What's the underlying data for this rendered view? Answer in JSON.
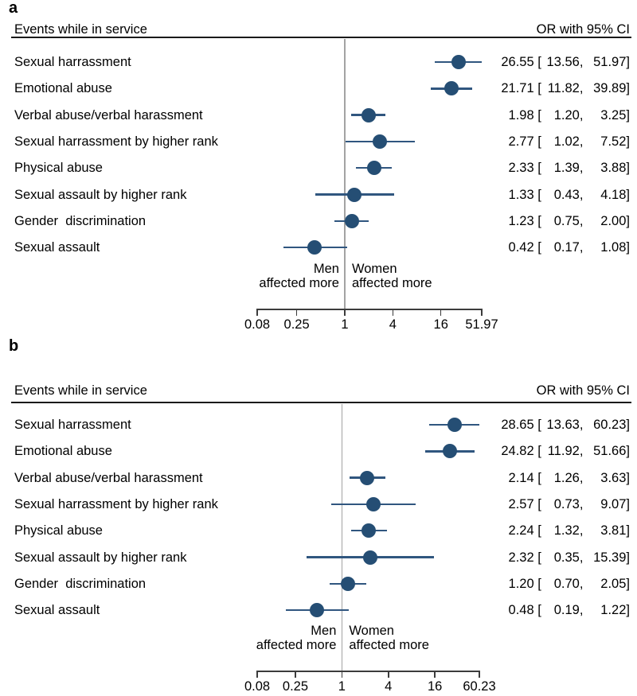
{
  "colors": {
    "marker": "#254e74",
    "ci_line": "#30567f",
    "ref_line": "#a3a3a3",
    "rule": "#1a1a1a",
    "axis": "#3c3c3c"
  },
  "chart_data": [
    {
      "type": "scatter",
      "variant": "forest-plot",
      "panel_label": "a",
      "title": "Events while in service",
      "value_header": "OR with 95% CI",
      "xscale": "log",
      "xlim": [
        0.08,
        51.97
      ],
      "xticks": [
        0.08,
        0.25,
        1,
        4,
        16,
        51.97
      ],
      "xtick_labels": [
        "0.08",
        "0.25",
        "1",
        "4",
        "16",
        "51.97"
      ],
      "ref_line": 1,
      "left_label_line1": "Men",
      "left_label_line2": "affected more",
      "right_label_line1": "Women",
      "right_label_line2": "affected more",
      "categories": [
        "Sexual harrassment",
        "Emotional abuse",
        "Verbal abuse/verbal harassment",
        "Sexual harrassment by higher rank",
        "Physical abuse",
        "Sexual assault by higher rank",
        "Gender  discrimination",
        "Sexual assault"
      ],
      "series": [
        {
          "name": "OR",
          "values": [
            26.55,
            21.71,
            1.98,
            2.77,
            2.33,
            1.33,
            1.23,
            0.42
          ]
        },
        {
          "name": "95% CI lower",
          "values": [
            13.56,
            11.82,
            1.2,
            1.02,
            1.39,
            0.43,
            0.75,
            0.17
          ]
        },
        {
          "name": "95% CI upper",
          "values": [
            51.97,
            39.89,
            3.25,
            7.52,
            3.88,
            4.18,
            2.0,
            1.08
          ]
        }
      ],
      "display": {
        "or": [
          "26.55",
          "21.71",
          "1.98",
          "2.77",
          "2.33",
          "1.33",
          "1.23",
          "0.42"
        ],
        "lo": [
          "13.56",
          "11.82",
          "1.20",
          "1.02",
          "1.39",
          "0.43",
          "0.75",
          "0.17"
        ],
        "hi": [
          "51.97",
          "39.89",
          "3.25",
          "7.52",
          "3.88",
          "4.18",
          "2.00",
          "1.08"
        ]
      }
    },
    {
      "type": "scatter",
      "variant": "forest-plot",
      "panel_label": "b",
      "title": "Events while in service",
      "value_header": "OR with 95% CI",
      "xscale": "log",
      "xlim": [
        0.08,
        60.23
      ],
      "xticks": [
        0.08,
        0.25,
        1,
        4,
        16,
        60.23
      ],
      "xtick_labels": [
        "0.08",
        "0.25",
        "1",
        "4",
        "16",
        "60.23"
      ],
      "ref_line": 1,
      "left_label_line1": "Men",
      "left_label_line2": "affected more",
      "right_label_line1": "Women",
      "right_label_line2": "affected more",
      "categories": [
        "Sexual harrassment",
        "Emotional abuse",
        "Verbal abuse/verbal harassment",
        "Sexual harrassment by higher rank",
        "Physical abuse",
        "Sexual assault by higher rank",
        "Gender  discrimination",
        "Sexual assault"
      ],
      "series": [
        {
          "name": "OR",
          "values": [
            28.65,
            24.82,
            2.14,
            2.57,
            2.24,
            2.32,
            1.2,
            0.48
          ]
        },
        {
          "name": "95% CI lower",
          "values": [
            13.63,
            11.92,
            1.26,
            0.73,
            1.32,
            0.35,
            0.7,
            0.19
          ]
        },
        {
          "name": "95% CI upper",
          "values": [
            60.23,
            51.66,
            3.63,
            9.07,
            3.81,
            15.39,
            2.05,
            1.22
          ]
        }
      ],
      "display": {
        "or": [
          "28.65",
          "24.82",
          "2.14",
          "2.57",
          "2.24",
          "2.32",
          "1.20",
          "0.48"
        ],
        "lo": [
          "13.63",
          "11.92",
          "1.26",
          "0.73",
          "1.32",
          "0.35",
          "0.70",
          "0.19"
        ],
        "hi": [
          "60.23",
          "51.66",
          "3.63",
          "9.07",
          "3.81",
          "15.39",
          "2.05",
          "1.22"
        ]
      }
    }
  ]
}
